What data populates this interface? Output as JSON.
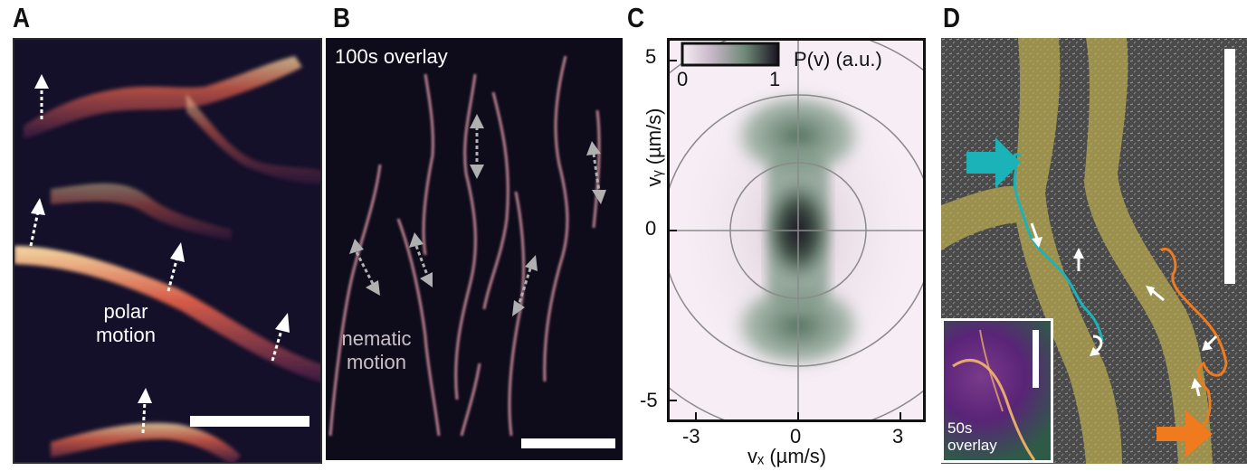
{
  "panel_letters": {
    "a": "A",
    "b": "B",
    "c": "C",
    "d": "D"
  },
  "panel_a": {
    "label_line1": "polar",
    "label_line2": "motion",
    "bg_color": "#14102a",
    "signal_color": "#f6c67a"
  },
  "panel_b": {
    "overlay_label": "100s overlay",
    "label_line1": "nematic",
    "label_line2": "motion",
    "bg_color": "#0e0b1a"
  },
  "panel_c": {
    "colorbar_min": "0",
    "colorbar_max": "1",
    "colorbar_label": "P(v) (a.u.)",
    "xlabel": "vₓ (µm/s)",
    "ylabel": "vᵧ (µm/s)",
    "x_ticks": [
      "-3",
      "0",
      "3"
    ],
    "y_ticks": [
      "5",
      "0",
      "-5"
    ],
    "map_color": "#3d5c48"
  },
  "panel_d": {
    "inset_line1": "50s",
    "inset_line2": "overlay",
    "trace1_color": "#1bb3b8",
    "trace2_color": "#f07a1e",
    "band_color": "#b8a850"
  }
}
